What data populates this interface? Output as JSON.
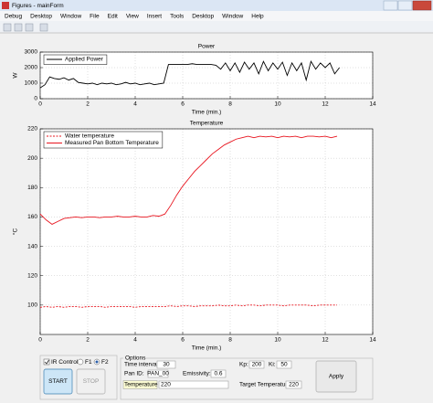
{
  "window": {
    "title": "Figures - mainForm"
  },
  "menu": [
    "Debug",
    "Desktop",
    "Window",
    "File",
    "Edit",
    "View",
    "Insert",
    "Tools",
    "Desktop",
    "Window",
    "Help"
  ],
  "chart_data": [
    {
      "type": "line",
      "title": "Power",
      "xlabel": "Time (min.)",
      "ylabel": "W",
      "xlim": [
        0,
        14
      ],
      "xticks": [
        0,
        2,
        4,
        6,
        8,
        10,
        12,
        14
      ],
      "ylim": [
        0,
        3000
      ],
      "yticks": [
        0,
        1000,
        2000,
        3000
      ],
      "grid": true,
      "legend": "upper left",
      "x": [
        0,
        0.2,
        0.4,
        0.6,
        0.8,
        1,
        1.2,
        1.4,
        1.6,
        1.8,
        2,
        2.2,
        2.4,
        2.6,
        2.8,
        3,
        3.2,
        3.4,
        3.6,
        3.8,
        4,
        4.2,
        4.4,
        4.6,
        4.8,
        5,
        5.2,
        5.4,
        5.6,
        5.8,
        6,
        6.2,
        6.4,
        6.6,
        6.8,
        7,
        7.2,
        7.4,
        7.6,
        7.8,
        8,
        8.2,
        8.4,
        8.6,
        8.8,
        9,
        9.2,
        9.4,
        9.6,
        9.8,
        10,
        10.2,
        10.4,
        10.6,
        10.8,
        11,
        11.2,
        11.4,
        11.6,
        11.8,
        12,
        12.2,
        12.4,
        12.6
      ],
      "series": [
        {
          "name": "Applied Power",
          "color": "#000000",
          "linestyle": "solid",
          "values": [
            700,
            900,
            1400,
            1300,
            1250,
            1350,
            1200,
            1300,
            1050,
            1000,
            950,
            1000,
            900,
            1000,
            950,
            1000,
            900,
            950,
            1050,
            950,
            1000,
            900,
            950,
            1000,
            900,
            950,
            1000,
            2200,
            2200,
            2200,
            2200,
            2200,
            2250,
            2200,
            2200,
            2200,
            2200,
            2150,
            1900,
            2300,
            1800,
            2300,
            1700,
            2350,
            1900,
            2300,
            1600,
            2400,
            1800,
            2300,
            1900,
            2350,
            1500,
            2300,
            1800,
            2300,
            1200,
            2400,
            1900,
            2300,
            2000,
            2300,
            1600,
            2000
          ]
        }
      ]
    },
    {
      "type": "line",
      "title": "Temperature",
      "xlabel": "Time (min.)",
      "ylabel": "°C",
      "xlim": [
        0,
        14
      ],
      "xticks": [
        0,
        2,
        4,
        6,
        8,
        10,
        12,
        14
      ],
      "ylim": [
        80,
        220
      ],
      "yticks": [
        100,
        120,
        140,
        160,
        180,
        200,
        220
      ],
      "grid": true,
      "legend": "upper left",
      "x": [
        0,
        0.25,
        0.5,
        0.75,
        1,
        1.25,
        1.5,
        1.75,
        2,
        2.25,
        2.5,
        2.75,
        3,
        3.25,
        3.5,
        3.75,
        4,
        4.25,
        4.5,
        4.75,
        5,
        5.25,
        5.5,
        5.75,
        6,
        6.25,
        6.5,
        6.75,
        7,
        7.25,
        7.5,
        7.75,
        8,
        8.25,
        8.5,
        8.75,
        9,
        9.25,
        9.5,
        9.75,
        10,
        10.25,
        10.5,
        10.75,
        11,
        11.25,
        11.5,
        11.75,
        12,
        12.25,
        12.5
      ],
      "series": [
        {
          "name": "Water temperature",
          "color": "#e8141e",
          "linestyle": "dashed",
          "values": [
            98.5,
            99,
            98.5,
            99,
            98.5,
            99,
            99,
            98.5,
            99,
            99,
            99,
            98.5,
            99,
            99,
            99,
            99,
            98.5,
            99,
            99,
            99,
            99,
            99,
            99.5,
            99,
            99.5,
            99.5,
            99,
            99.5,
            99.5,
            99.5,
            100,
            99.5,
            99.5,
            100,
            99.5,
            100,
            100,
            99.5,
            100,
            100,
            100,
            99.5,
            100,
            100,
            100,
            100,
            99.5,
            100,
            100,
            100,
            100
          ]
        },
        {
          "name": "Measured Pan Bottom Temperature",
          "color": "#e8141e",
          "linestyle": "solid",
          "values": [
            162,
            158,
            155,
            157,
            159,
            159.5,
            160,
            159.5,
            160,
            160,
            159.5,
            160,
            160,
            160.5,
            160,
            160,
            160.5,
            160,
            160,
            161,
            160.5,
            162,
            168,
            175,
            181,
            186,
            191,
            195,
            199,
            203,
            206,
            209,
            211,
            213,
            214,
            215,
            214,
            215,
            214.5,
            215,
            214,
            215,
            214.5,
            215,
            214,
            215,
            215,
            214.5,
            215,
            214,
            215
          ]
        }
      ]
    }
  ],
  "control_panel": {
    "ir_control": "IR Control",
    "radios": [
      "F1",
      "F2"
    ],
    "start": "START",
    "stop": "STOP"
  },
  "options": {
    "title": "Options",
    "fields": [
      {
        "label": "Time interval:",
        "value": 30
      },
      {
        "label": "Pan ID:",
        "value": "PAN_00"
      },
      {
        "label": "Emissivity:",
        "value": 0.6
      },
      {
        "label": "Temperature list:",
        "value": 220
      },
      {
        "label": "Kp:",
        "value": 200
      },
      {
        "label": "Ki:",
        "value": 50
      },
      {
        "label": "Target Temperature:",
        "value": 220
      }
    ],
    "apply": "Apply"
  }
}
